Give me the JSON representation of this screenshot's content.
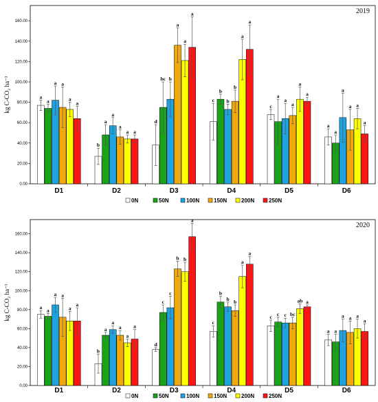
{
  "chart_data": [
    {
      "type": "bar",
      "title": "2019",
      "ylabel": "kg C-CO₂ ha⁻¹",
      "ylim": [
        0,
        175
      ],
      "yticks": [
        0,
        20,
        40,
        60,
        80,
        100,
        120,
        140,
        160
      ],
      "ytick_labels": [
        "0.00",
        "20.00",
        "40.00",
        "60.00",
        "80.00",
        "100.00",
        "120.00",
        "140.00",
        "160.00"
      ],
      "categories": [
        "D1",
        "D2",
        "D3",
        "D4",
        "D5",
        "D6"
      ],
      "grid": false,
      "legend": "bottom",
      "series": [
        {
          "name": "0N",
          "values": [
            77,
            27,
            38,
            61,
            68,
            46
          ],
          "errors": [
            5,
            8,
            20,
            18,
            5,
            8
          ],
          "letters": [
            "a",
            "b",
            "d",
            "c",
            "c",
            "a"
          ]
        },
        {
          "name": "50N",
          "values": [
            74,
            48,
            75,
            83,
            61,
            40
          ],
          "errors": [
            4,
            10,
            25,
            5,
            22,
            8
          ],
          "letters": [
            "a",
            "a",
            "bc",
            "b",
            "a",
            "a"
          ]
        },
        {
          "name": "100N",
          "values": [
            82,
            57,
            83,
            73,
            64,
            65
          ],
          "errors": [
            14,
            8,
            17,
            5,
            15,
            24
          ],
          "letters": [
            "a",
            "a",
            "b",
            "b",
            "a",
            "a"
          ]
        },
        {
          "name": "150N",
          "values": [
            75,
            46,
            136,
            81,
            67,
            53
          ],
          "errors": [
            20,
            7,
            17,
            11,
            8,
            20
          ],
          "letters": [
            "a",
            "a",
            "a",
            "b",
            "a",
            "a"
          ]
        },
        {
          "name": "200N",
          "values": [
            73,
            44,
            121,
            122,
            83,
            64
          ],
          "errors": [
            7,
            4,
            16,
            20,
            12,
            10
          ],
          "letters": [
            "a",
            "a",
            "a",
            "a",
            "a",
            "a"
          ]
        },
        {
          "name": "250N",
          "values": [
            64,
            44,
            134,
            132,
            81,
            49
          ],
          "errors": [
            12,
            4,
            30,
            24,
            4,
            8
          ],
          "letters": [
            "a",
            "a",
            "a",
            "a",
            "a",
            "a"
          ]
        }
      ]
    },
    {
      "type": "bar",
      "title": "2020",
      "ylabel": "kg C-CO₂ ha⁻¹",
      "ylim": [
        0,
        175
      ],
      "yticks": [
        0,
        20,
        40,
        60,
        80,
        100,
        120,
        140,
        160
      ],
      "ytick_labels": [
        "0.00",
        "20.00",
        "40.00",
        "60.00",
        "80.00",
        "100.00",
        "120.00",
        "140.00",
        "160.00"
      ],
      "categories": [
        "D1",
        "D2",
        "D3",
        "D4",
        "D5",
        "D6"
      ],
      "grid": false,
      "legend": "bottom",
      "series": [
        {
          "name": "0N",
          "values": [
            75,
            23,
            38,
            57,
            63,
            48
          ],
          "errors": [
            4,
            10,
            2,
            6,
            6,
            6
          ],
          "letters": [
            "a",
            "b",
            "d",
            "c",
            "c",
            "a"
          ]
        },
        {
          "name": "50N",
          "values": [
            73,
            53,
            77,
            88,
            67,
            46
          ],
          "errors": [
            3,
            3,
            8,
            6,
            5,
            8
          ],
          "letters": [
            "a",
            "a",
            "c",
            "b",
            "c",
            "a"
          ]
        },
        {
          "name": "100N",
          "values": [
            85,
            59,
            82,
            83,
            66,
            58
          ],
          "errors": [
            8,
            4,
            12,
            5,
            5,
            12
          ],
          "letters": [
            "a",
            "a",
            "c",
            "b",
            "c",
            "a"
          ]
        },
        {
          "name": "150N",
          "values": [
            72,
            53,
            123,
            79,
            66,
            56
          ],
          "errors": [
            20,
            5,
            8,
            6,
            6,
            12
          ],
          "letters": [
            "a",
            "a",
            "b",
            "b",
            "bc",
            "a"
          ]
        },
        {
          "name": "200N",
          "values": [
            68,
            45,
            120,
            115,
            81,
            60
          ],
          "errors": [
            10,
            4,
            10,
            12,
            5,
            10
          ],
          "letters": [
            "a",
            "a",
            "b",
            "a",
            "ab",
            "a"
          ]
        },
        {
          "name": "250N",
          "values": [
            68,
            49,
            157,
            128,
            83,
            57
          ],
          "errors": [
            14,
            10,
            14,
            8,
            2,
            8
          ],
          "letters": [
            "a",
            "a",
            "a",
            "a",
            "a",
            "a"
          ]
        }
      ]
    }
  ],
  "series_colors": [
    "#ffffff",
    "#19a319",
    "#1ea3e0",
    "#f0a80c",
    "#ffff00",
    "#ff1414"
  ]
}
